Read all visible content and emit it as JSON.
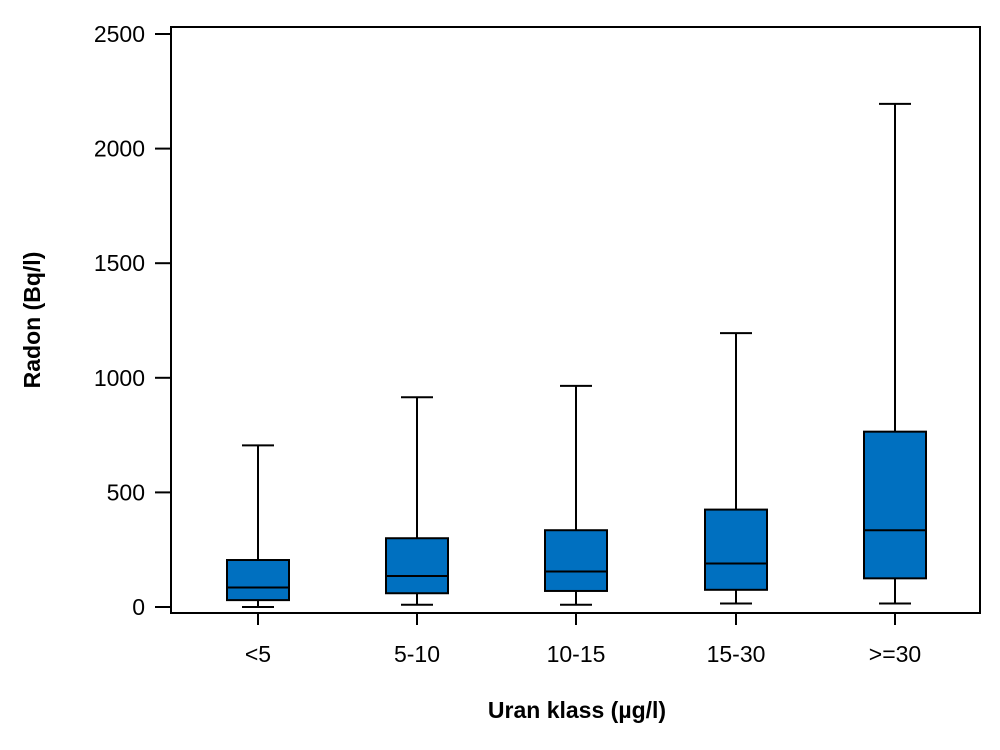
{
  "chart_data": {
    "type": "boxplot",
    "title": "",
    "xlabel": "Uran klass (µg/l)",
    "ylabel": "Radon (Bq/l)",
    "ylim": [
      -20,
      2550
    ],
    "yticks": [
      0,
      500,
      1000,
      1500,
      2000,
      2500
    ],
    "grid": false,
    "legend": "none",
    "categories": [
      "<5",
      "5-10",
      "10-15",
      "15-30",
      ">=30"
    ],
    "boxes": [
      {
        "category": "<5",
        "whisker_low": 0,
        "q1": 30,
        "median": 85,
        "q3": 205,
        "whisker_high": 705
      },
      {
        "category": "5-10",
        "whisker_low": 10,
        "q1": 60,
        "median": 135,
        "q3": 300,
        "whisker_high": 915
      },
      {
        "category": "10-15",
        "whisker_low": 10,
        "q1": 70,
        "median": 155,
        "q3": 335,
        "whisker_high": 965
      },
      {
        "category": "15-30",
        "whisker_low": 15,
        "q1": 75,
        "median": 190,
        "q3": 425,
        "whisker_high": 1195
      },
      {
        "category": ">=30",
        "whisker_low": 15,
        "q1": 125,
        "median": 335,
        "q3": 765,
        "whisker_high": 2195
      }
    ],
    "box_color": "#0070c0",
    "line_color": "#000000"
  }
}
